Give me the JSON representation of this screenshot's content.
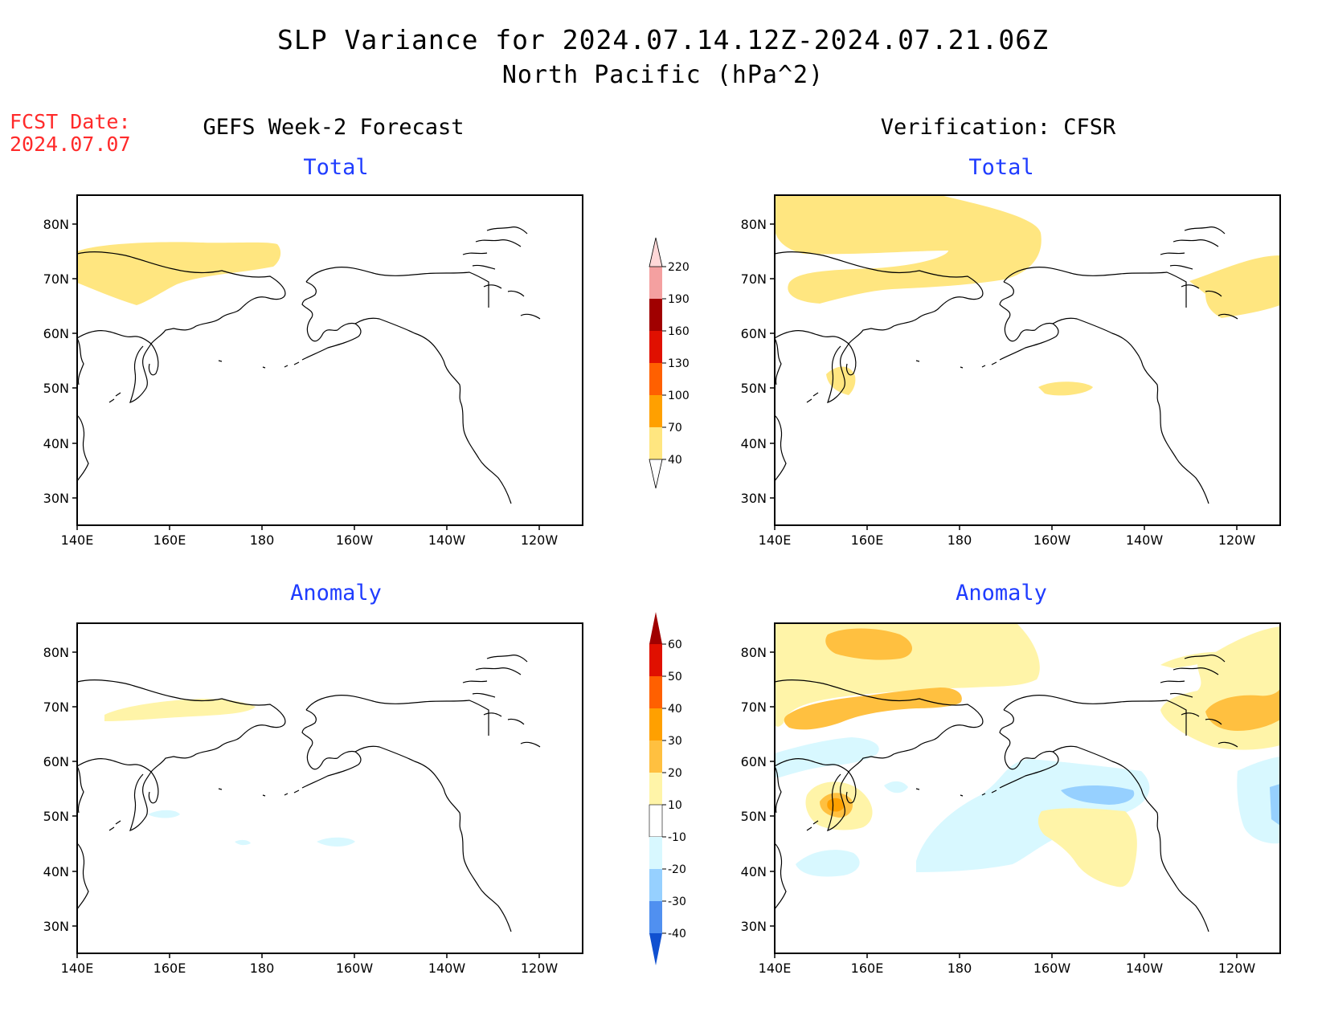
{
  "title": {
    "line1": "SLP Variance for 2024.07.14.12Z-2024.07.21.06Z",
    "line2": "North Pacific (hPa^2)"
  },
  "fcst": {
    "label": "FCST Date:",
    "date": "2024.07.07"
  },
  "columns": {
    "left": "GEFS Week-2 Forecast",
    "right": "Verification: CFSR"
  },
  "panel_titles": {
    "total": "Total",
    "anomaly": "Anomaly"
  },
  "axes": {
    "lat_labels": [
      "80N",
      "70N",
      "60N",
      "50N",
      "40N",
      "30N"
    ],
    "lon_labels": [
      "140E",
      "160E",
      "180",
      "160W",
      "140W",
      "120W"
    ]
  },
  "colorbars": {
    "total": {
      "levels": [
        "40",
        "70",
        "100",
        "130",
        "160",
        "190",
        "220"
      ],
      "colors": [
        "#ffe680",
        "#ffa000",
        "#ff6000",
        "#e01000",
        "#a00000",
        "#f4a0a0",
        "#ffd8d8"
      ]
    },
    "anomaly": {
      "levels": [
        "60",
        "50",
        "40",
        "30",
        "20",
        "10",
        "-10",
        "-20",
        "-30",
        "-40"
      ],
      "colors": [
        "#a00000",
        "#e01000",
        "#ff6000",
        "#ffa000",
        "#ffc040",
        "#fff4a8",
        "#ffffff",
        "#d8f8ff",
        "#96d0ff",
        "#5090f0",
        "#1e6ee0",
        "#1050d0"
      ]
    }
  }
}
